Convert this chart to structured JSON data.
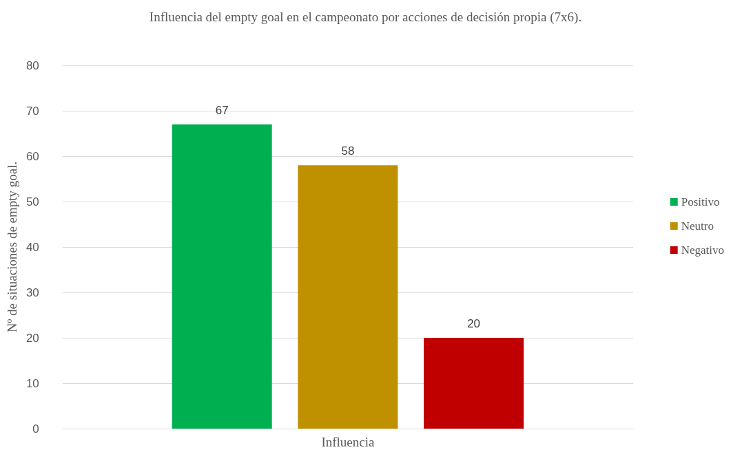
{
  "chart_data": {
    "type": "bar",
    "title": "Influencia del empty goal en el campeonato por acciones de decisión propia (7x6).",
    "ylabel": "Nº de situaciones de empty goal.",
    "categories": [
      "Influencia"
    ],
    "series": [
      {
        "name": "Positivo",
        "color": "#00b050",
        "values": [
          67
        ]
      },
      {
        "name": "Neutro",
        "color": "#bf9000",
        "values": [
          58
        ]
      },
      {
        "name": "Negativo",
        "color": "#c00000",
        "values": [
          20
        ]
      }
    ],
    "ylim": [
      0,
      80
    ],
    "yticks": [
      0,
      10,
      20,
      30,
      40,
      50,
      60,
      70,
      80
    ],
    "grid": "y",
    "legend": "right",
    "data_labels": true
  }
}
